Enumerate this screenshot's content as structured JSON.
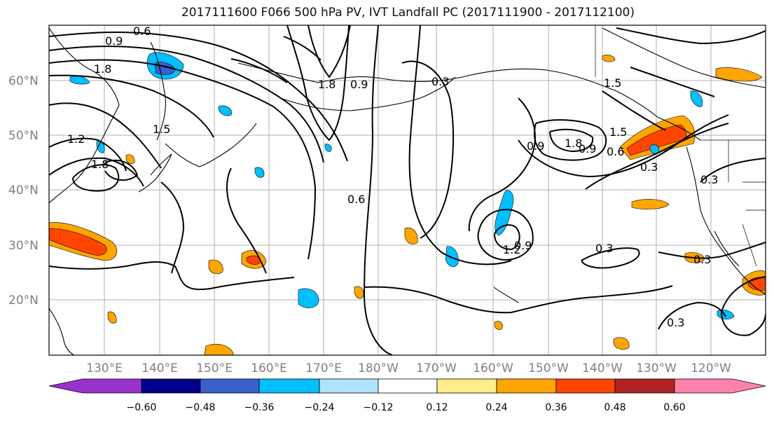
{
  "title": "2017111600 F066 500 hPa PV, IVT Landfall PC (2017111900 - 2017112100)",
  "lat_labels": [
    "60°N",
    "50°N",
    "40°N",
    "30°N",
    "20°N"
  ],
  "lon_labels": [
    "130°E",
    "140°E",
    "150°E",
    "160°E",
    "170°E",
    "180°W",
    "170°W",
    "160°W",
    "150°W",
    "140°W",
    "130°W",
    "120°W"
  ],
  "contour_labels": [
    "0.6",
    "0.9",
    "1.8",
    "1.2",
    "1.5",
    "1.8",
    "1.8",
    "0.9",
    "0.3",
    "0.6",
    "0.9",
    "1.5",
    "0.9",
    "1.8",
    "1.5",
    "0.6",
    "0.3",
    "0.3",
    "0.3",
    "0.3",
    "0.3",
    "1.2",
    "0.9"
  ],
  "colorbar": {
    "tick_labels": [
      "−0.60",
      "−0.48",
      "−0.36",
      "−0.24",
      "−0.12",
      "0.12",
      "0.24",
      "0.36",
      "0.48",
      "0.60"
    ],
    "colors": [
      "#9932cc",
      "#00008b",
      "#3a5fcd",
      "#00bfff",
      "#b0e2ff",
      "#ffffff",
      "#ffec8b",
      "#ffa500",
      "#ff4500",
      "#b22222",
      "#ff82ab"
    ]
  }
}
